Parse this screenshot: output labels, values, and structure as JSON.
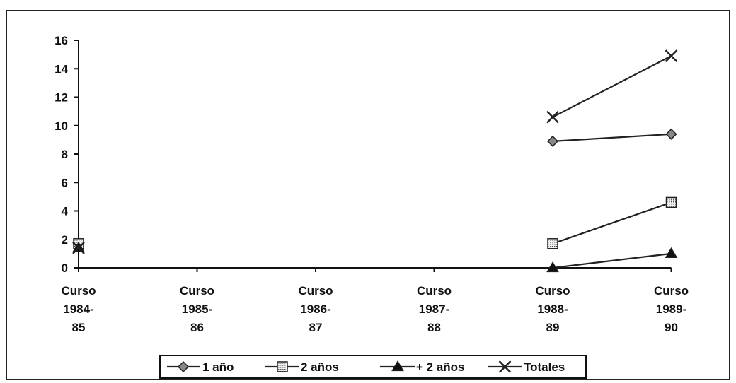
{
  "chart_data": {
    "type": "line",
    "categories": [
      [
        "Curso",
        "1984-",
        "85"
      ],
      [
        "Curso",
        "1985-",
        "86"
      ],
      [
        "Curso",
        "1986-",
        "87"
      ],
      [
        "Curso",
        "1987-",
        "88"
      ],
      [
        "Curso",
        "1988-",
        "89"
      ],
      [
        "Curso",
        "1989-",
        "90"
      ]
    ],
    "ylim": [
      0,
      16
    ],
    "yticks": [
      0,
      2,
      4,
      6,
      8,
      10,
      12,
      14,
      16
    ],
    "legend_position": "bottom",
    "grid": false,
    "series": [
      {
        "name": "1 año",
        "marker": "diamond",
        "values": [
          1.6,
          null,
          null,
          null,
          8.9,
          9.4
        ]
      },
      {
        "name": "2 años",
        "marker": "square",
        "values": [
          1.7,
          null,
          null,
          null,
          1.7,
          4.6
        ]
      },
      {
        "name": "+ 2 años",
        "marker": "triangle",
        "values": [
          1.4,
          null,
          null,
          null,
          0.0,
          1.0
        ]
      },
      {
        "name": "Totales",
        "marker": "x",
        "values": [
          1.4,
          null,
          null,
          null,
          10.6,
          14.9
        ]
      }
    ],
    "colors": {
      "line": "#222222",
      "marker_fill": "#888888",
      "axis": "#111111"
    }
  }
}
